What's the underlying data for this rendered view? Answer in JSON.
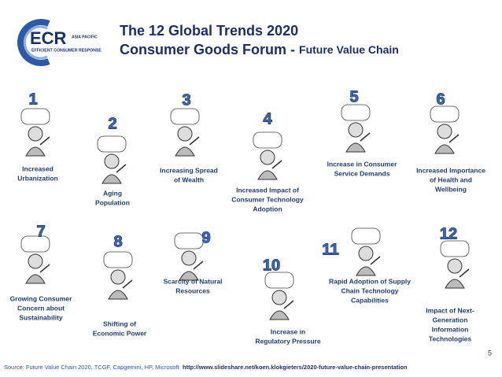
{
  "logo": {
    "name": "ECR",
    "region": "ASIA PACIFIC",
    "tagline": "EFFICIENT CONSUMER RESPONSE"
  },
  "header": {
    "title": "The 12 Global Trends 2020",
    "subtitle": "Consumer Goods Forum - ",
    "subtitle_emphasis": "Future Value Chain"
  },
  "trends": [
    {
      "number": 1,
      "label": [
        "Increased",
        "Urbanization"
      ]
    },
    {
      "number": 2,
      "label": [
        "Aging",
        "Population"
      ]
    },
    {
      "number": 3,
      "label": [
        "Increasing Spread",
        "of Wealth"
      ]
    },
    {
      "number": 4,
      "label": [
        "Increased Impact of",
        "Consumer Technology",
        "Adoption"
      ]
    },
    {
      "number": 5,
      "label": [
        "Increase in  Consumer",
        "Service Demands"
      ]
    },
    {
      "number": 6,
      "label": [
        "Increased Importance",
        "of Health and",
        "Wellbeing"
      ]
    },
    {
      "number": 7,
      "label": [
        "Growing Consumer",
        "Concern about",
        "Sustainability"
      ]
    },
    {
      "number": 8,
      "label": [
        "Shifting of",
        "Economic Power"
      ]
    },
    {
      "number": 9,
      "label": [
        "Scarcity of Natural",
        "Resources"
      ]
    },
    {
      "number": 10,
      "label": [
        "Increase in",
        "Regulatory Pressure"
      ]
    },
    {
      "number": 11,
      "label": [
        "Rapid Adoption of Supply",
        "Chain Technology",
        "Capabilities"
      ]
    },
    {
      "number": 12,
      "label": [
        "Impact of Next-",
        "Generation",
        "Information",
        "Technologies"
      ]
    }
  ],
  "footer": {
    "source": "Source: Future Value Chain 2020, TCGF, Capgemini, HP, Microsoft",
    "url": "http://www.slideshare.net/koen.klokgieters/2020-future-value-chain-presentation",
    "page": 5
  }
}
